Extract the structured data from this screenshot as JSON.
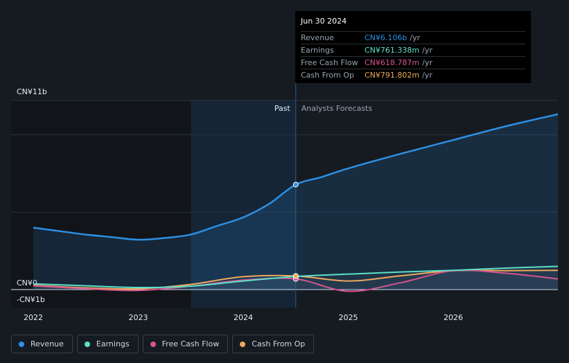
{
  "colors": {
    "revenue": "#2d8fe3",
    "earnings": "#5ce0c8",
    "free_cash_flow": "#d6558f",
    "cash_from_op": "#eda95b"
  },
  "tooltip": {
    "date": "Jun 30 2024",
    "rows": [
      {
        "label": "Revenue",
        "value": "CN¥6.106b",
        "unit": "/yr"
      },
      {
        "label": "Earnings",
        "value": "CN¥761.338m",
        "unit": "/yr"
      },
      {
        "label": "Free Cash Flow",
        "value": "CN¥618.787m",
        "unit": "/yr"
      },
      {
        "label": "Cash From Op",
        "value": "CN¥791.802m",
        "unit": "/yr"
      }
    ]
  },
  "legend": [
    {
      "label": "Revenue",
      "color": "#2d8fe3"
    },
    {
      "label": "Earnings",
      "color": "#5ce0c8"
    },
    {
      "label": "Free Cash Flow",
      "color": "#d6558f"
    },
    {
      "label": "Cash From Op",
      "color": "#eda95b"
    }
  ],
  "chart_data": {
    "type": "line",
    "title": "",
    "xlabel": "",
    "ylabel": "",
    "past_label": "Past",
    "forecast_label": "Analysts Forecasts",
    "ylim": [
      -1,
      11
    ],
    "y_tick_labels": [
      {
        "value": 11,
        "label": "CN¥11b"
      },
      {
        "value": 0,
        "label": "CN¥0"
      },
      {
        "value": -1,
        "label": "-CN¥1b"
      }
    ],
    "x_tick_labels": [
      {
        "value": 2022,
        "label": "2022"
      },
      {
        "value": 2023,
        "label": "2023"
      },
      {
        "value": 2024,
        "label": "2024"
      },
      {
        "value": 2025,
        "label": "2025"
      },
      {
        "value": 2026,
        "label": "2026"
      }
    ],
    "xlim": [
      2021.8,
      2027.0
    ],
    "forecast_start": 2024.5,
    "highlight_start": 2023.5,
    "series": [
      {
        "name": "Revenue",
        "color": "#2d8fe3",
        "fill": true,
        "points": [
          [
            2022.0,
            3.6
          ],
          [
            2022.25,
            3.4
          ],
          [
            2022.5,
            3.2
          ],
          [
            2022.75,
            3.05
          ],
          [
            2023.0,
            2.9
          ],
          [
            2023.25,
            3.0
          ],
          [
            2023.5,
            3.2
          ],
          [
            2023.75,
            3.7
          ],
          [
            2024.0,
            4.2
          ],
          [
            2024.25,
            5.0
          ],
          [
            2024.5,
            6.106
          ],
          [
            2024.75,
            6.55
          ],
          [
            2025.0,
            7.05
          ],
          [
            2025.5,
            7.9
          ],
          [
            2026.0,
            8.7
          ],
          [
            2026.5,
            9.5
          ],
          [
            2027.0,
            10.2
          ]
        ]
      },
      {
        "name": "Earnings",
        "color": "#5ce0c8",
        "fill": false,
        "points": [
          [
            2022.0,
            0.33
          ],
          [
            2022.5,
            0.22
          ],
          [
            2023.0,
            0.12
          ],
          [
            2023.5,
            0.2
          ],
          [
            2024.0,
            0.5
          ],
          [
            2024.5,
            0.761
          ],
          [
            2025.0,
            0.9
          ],
          [
            2025.5,
            1.02
          ],
          [
            2026.0,
            1.12
          ],
          [
            2026.5,
            1.25
          ],
          [
            2027.0,
            1.35
          ]
        ]
      },
      {
        "name": "Free Cash Flow",
        "color": "#d6558f",
        "fill": false,
        "points": [
          [
            2022.0,
            0.22
          ],
          [
            2022.5,
            0.05
          ],
          [
            2023.0,
            -0.05
          ],
          [
            2023.5,
            0.2
          ],
          [
            2024.0,
            0.55
          ],
          [
            2024.5,
            0.619
          ],
          [
            2025.0,
            -0.1
          ],
          [
            2025.5,
            0.4
          ],
          [
            2026.0,
            1.1
          ],
          [
            2026.5,
            0.95
          ],
          [
            2027.0,
            0.62
          ]
        ]
      },
      {
        "name": "Cash From Op",
        "color": "#eda95b",
        "fill": false,
        "points": [
          [
            2022.0,
            0.25
          ],
          [
            2022.5,
            0.1
          ],
          [
            2023.0,
            0.05
          ],
          [
            2023.5,
            0.3
          ],
          [
            2024.0,
            0.75
          ],
          [
            2024.5,
            0.792
          ],
          [
            2025.0,
            0.5
          ],
          [
            2025.5,
            0.8
          ],
          [
            2026.0,
            1.1
          ],
          [
            2026.5,
            1.1
          ],
          [
            2027.0,
            1.12
          ]
        ]
      }
    ]
  }
}
